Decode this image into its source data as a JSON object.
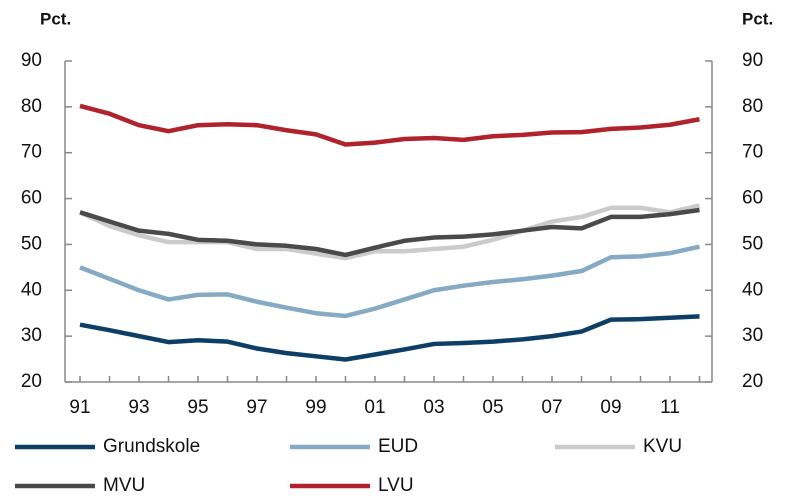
{
  "chart_data": {
    "type": "line",
    "y_label": "Pct.",
    "y2_label": "Pct.",
    "categories": [
      "91",
      null,
      "93",
      null,
      "95",
      null,
      "97",
      null,
      "99",
      null,
      "01",
      null,
      "03",
      null,
      "05",
      null,
      "07",
      null,
      "09",
      null,
      "11",
      null
    ],
    "ylim": [
      20,
      90
    ],
    "yticks": [
      20,
      30,
      40,
      50,
      60,
      70,
      80,
      90
    ],
    "y2lim": [
      20,
      90
    ],
    "y2ticks": [
      20,
      30,
      40,
      50,
      60,
      70,
      80,
      90
    ],
    "series": [
      {
        "name": "Grundskole",
        "color": "#0d3f66",
        "values": [
          32.5,
          31.3,
          30,
          28.7,
          29.1,
          28.8,
          27.3,
          26.3,
          25.6,
          24.9,
          26,
          27.1,
          28.3,
          28.5,
          28.8,
          29.3,
          30,
          31,
          33.6,
          33.7,
          34,
          34.3
        ]
      },
      {
        "name": "EUD",
        "color": "#86aac4",
        "values": [
          45,
          42.5,
          40,
          38,
          39,
          39.1,
          37.5,
          36.2,
          35,
          34.4,
          36,
          38,
          40,
          41,
          41.8,
          42.4,
          43.2,
          44.2,
          47.2,
          47.4,
          48.1,
          49.5
        ]
      },
      {
        "name": "KVU",
        "color": "#cbcbcb",
        "values": [
          57,
          54,
          52,
          50.5,
          50.5,
          50.5,
          49,
          49,
          48,
          47,
          48.5,
          48.5,
          49,
          49.5,
          51,
          53,
          55,
          56,
          58,
          58,
          57,
          58.5
        ]
      },
      {
        "name": "MVU",
        "color": "#4a4a4a",
        "values": [
          57,
          55,
          53,
          52.3,
          51,
          50.8,
          50,
          49.7,
          49,
          47.7,
          49.3,
          50.8,
          51.5,
          51.7,
          52.2,
          53,
          53.8,
          53.5,
          56,
          56,
          56.6,
          57.5
        ]
      },
      {
        "name": "LVU",
        "color": "#b0222c",
        "values": [
          80.2,
          78.5,
          76,
          74.7,
          76,
          76.2,
          76,
          74.9,
          74,
          71.8,
          72.2,
          73,
          73.2,
          72.8,
          73.6,
          73.9,
          74.4,
          74.5,
          75.2,
          75.5,
          76.1,
          77.3
        ]
      }
    ]
  }
}
